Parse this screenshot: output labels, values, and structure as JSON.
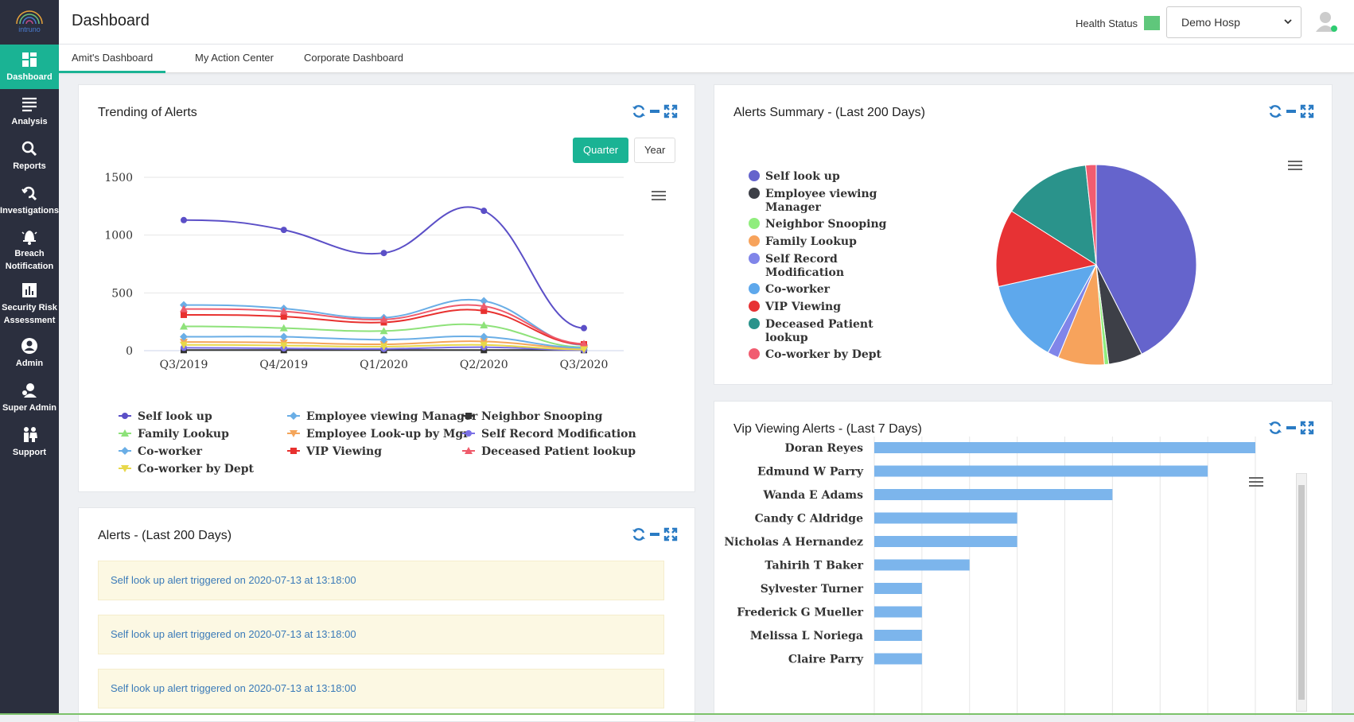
{
  "brand": {
    "logo_text": "intruno"
  },
  "header": {
    "title": "Dashboard",
    "health_label": "Health Status",
    "health_color": "#5fc77b",
    "hospital_select": "Demo Hosp"
  },
  "sidebar": {
    "accent": "#1ab394",
    "items": [
      {
        "label": "Dashboard",
        "icon": "dashboard-icon"
      },
      {
        "label": "Analysis",
        "icon": "list-icon"
      },
      {
        "label": "Reports",
        "icon": "search-icon"
      },
      {
        "label": "Investigations",
        "icon": "investigation-icon"
      },
      {
        "label": "Breach Notification",
        "icon": "bell-icon"
      },
      {
        "label": "Security Risk Assessment",
        "icon": "bar-chart-icon"
      },
      {
        "label": "Admin",
        "icon": "user-icon"
      },
      {
        "label": "Super Admin",
        "icon": "super-admin-icon"
      },
      {
        "label": "Support",
        "icon": "support-icon"
      }
    ]
  },
  "tabs": [
    "Amit's Dashboard",
    "My Action Center",
    "Corporate Dashboard"
  ],
  "panels": {
    "trending": {
      "title": "Trending of Alerts",
      "quarter_label": "Quarter",
      "year_label": "Year"
    },
    "summary": {
      "title": "Alerts Summary - (Last 200 Days)"
    },
    "vip": {
      "title": "Vip Viewing Alerts - (Last 7 Days)"
    },
    "alerts": {
      "title": "Alerts - (Last 200 Days)",
      "items": [
        "Self look up alert triggered on 2020-07-13 at 13:18:00",
        "Self look up alert triggered on 2020-07-13 at 13:18:00",
        "Self look up alert triggered on 2020-07-13 at 13:18:00"
      ]
    }
  },
  "chart_data": [
    {
      "type": "line",
      "categories": [
        "Q3/2019",
        "Q4/2019",
        "Q1/2020",
        "Q2/2020",
        "Q3/2020"
      ],
      "yticks": [
        "0",
        "500",
        "1000",
        "1500"
      ],
      "ylim": [
        0,
        1500
      ],
      "series": [
        {
          "name": "Self look up",
          "color": "#5b4fc7",
          "marker": "circle",
          "values": [
            1130,
            1045,
            845,
            1210,
            195
          ]
        },
        {
          "name": "Employee viewing Manager",
          "color": "#6aaee6",
          "marker": "diamond",
          "values": [
            395,
            365,
            285,
            430,
            50
          ]
        },
        {
          "name": "Neighbor Snooping",
          "color": "#333333",
          "marker": "square",
          "values": [
            5,
            5,
            5,
            5,
            5
          ]
        },
        {
          "name": "Family Lookup",
          "color": "#8ee27a",
          "marker": "triangle",
          "values": [
            210,
            195,
            170,
            220,
            30
          ]
        },
        {
          "name": "Employee Look-up by Mgr",
          "color": "#f4a55a",
          "marker": "triangle-down",
          "values": [
            75,
            70,
            55,
            80,
            20
          ]
        },
        {
          "name": "Self Record Modification",
          "color": "#7a6fe6",
          "marker": "circle",
          "values": [
            25,
            20,
            15,
            30,
            5
          ]
        },
        {
          "name": "Co-worker",
          "color": "#6aaee6",
          "marker": "diamond",
          "values": [
            120,
            120,
            95,
            120,
            25
          ]
        },
        {
          "name": "VIP Viewing",
          "color": "#e8312f",
          "marker": "square",
          "values": [
            310,
            295,
            245,
            345,
            55
          ]
        },
        {
          "name": "Deceased Patient lookup",
          "color": "#ef5b6b",
          "marker": "triangle",
          "values": [
            360,
            340,
            270,
            385,
            60
          ]
        },
        {
          "name": "Co-worker by Dept",
          "color": "#e8d84a",
          "marker": "triangle-down",
          "values": [
            50,
            45,
            35,
            50,
            10
          ]
        }
      ]
    },
    {
      "type": "pie",
      "series": [
        {
          "name": "Self look up",
          "color": "#6564cc",
          "value": 42.5
        },
        {
          "name": "Employee viewing Manager",
          "color": "#3d3f47",
          "value": 5.5
        },
        {
          "name": "Neighbor Snooping",
          "color": "#90ed7d",
          "value": 0.7
        },
        {
          "name": "Family Lookup",
          "color": "#f7a35c",
          "value": 7.5
        },
        {
          "name": "Self Record Modification",
          "color": "#8085e9",
          "value": 1.8
        },
        {
          "name": "Co-worker",
          "color": "#5ea8ec",
          "value": 13.5
        },
        {
          "name": "VIP Viewing",
          "color": "#e73234",
          "value": 12.5
        },
        {
          "name": "Deceased Patient lookup",
          "color": "#2a938b",
          "value": 14.3
        },
        {
          "name": "Co-worker by Dept",
          "color": "#f15c70",
          "value": 1.7
        }
      ]
    },
    {
      "type": "bar",
      "orientation": "horizontal",
      "color": "#7cb5ec",
      "categories": [
        "Doran Reyes",
        "Edmund W Parry",
        "Wanda E Adams",
        "Candy C Aldridge",
        "Nicholas A Hernandez",
        "Tahirih T Baker",
        "Sylvester Turner",
        "Frederick G Mueller",
        "Melissa L Noriega",
        "Claire Parry"
      ],
      "values": [
        8,
        7,
        5,
        3,
        3,
        2,
        1,
        1,
        1,
        1
      ],
      "xlim": [
        0,
        8
      ]
    }
  ]
}
